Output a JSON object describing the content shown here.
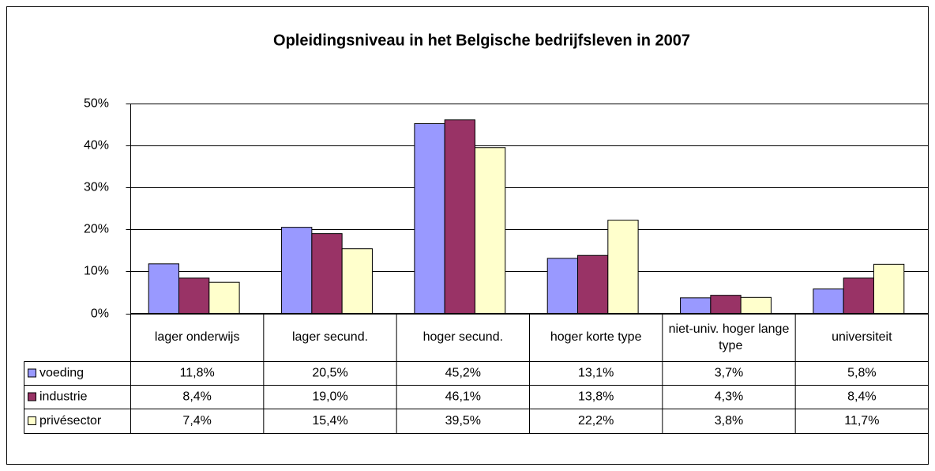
{
  "chart_data": {
    "type": "bar",
    "title": "Opleidingsniveau in het Belgische bedrijfsleven in 2007",
    "categories": [
      "lager onderwijs",
      "lager secund.",
      "hoger secund.",
      "hoger korte type",
      "niet-univ. hoger lange type",
      "universiteit"
    ],
    "series": [
      {
        "name": "voeding",
        "color": "#9999ff",
        "values": [
          11.8,
          20.5,
          45.2,
          13.1,
          3.7,
          5.8
        ],
        "value_labels": [
          "11,8%",
          "20,5%",
          "45,2%",
          "13,1%",
          "3,7%",
          "5,8%"
        ]
      },
      {
        "name": "industrie",
        "color": "#993366",
        "values": [
          8.4,
          19.0,
          46.1,
          13.8,
          4.3,
          8.4
        ],
        "value_labels": [
          "8,4%",
          "19,0%",
          "46,1%",
          "13,8%",
          "4,3%",
          "8,4%"
        ]
      },
      {
        "name": "privésector",
        "color": "#ffffcc",
        "values": [
          7.4,
          15.4,
          39.5,
          22.2,
          3.8,
          11.7
        ],
        "value_labels": [
          "7,4%",
          "15,4%",
          "39,5%",
          "22,2%",
          "3,8%",
          "11,7%"
        ]
      }
    ],
    "ylim": [
      0,
      50
    ],
    "yticks": [
      {
        "value": 0,
        "label": "0%"
      },
      {
        "value": 10,
        "label": "10%"
      },
      {
        "value": 20,
        "label": "20%"
      },
      {
        "value": 30,
        "label": "30%"
      },
      {
        "value": 40,
        "label": "40%"
      },
      {
        "value": 50,
        "label": "50%"
      }
    ],
    "grid": true
  }
}
